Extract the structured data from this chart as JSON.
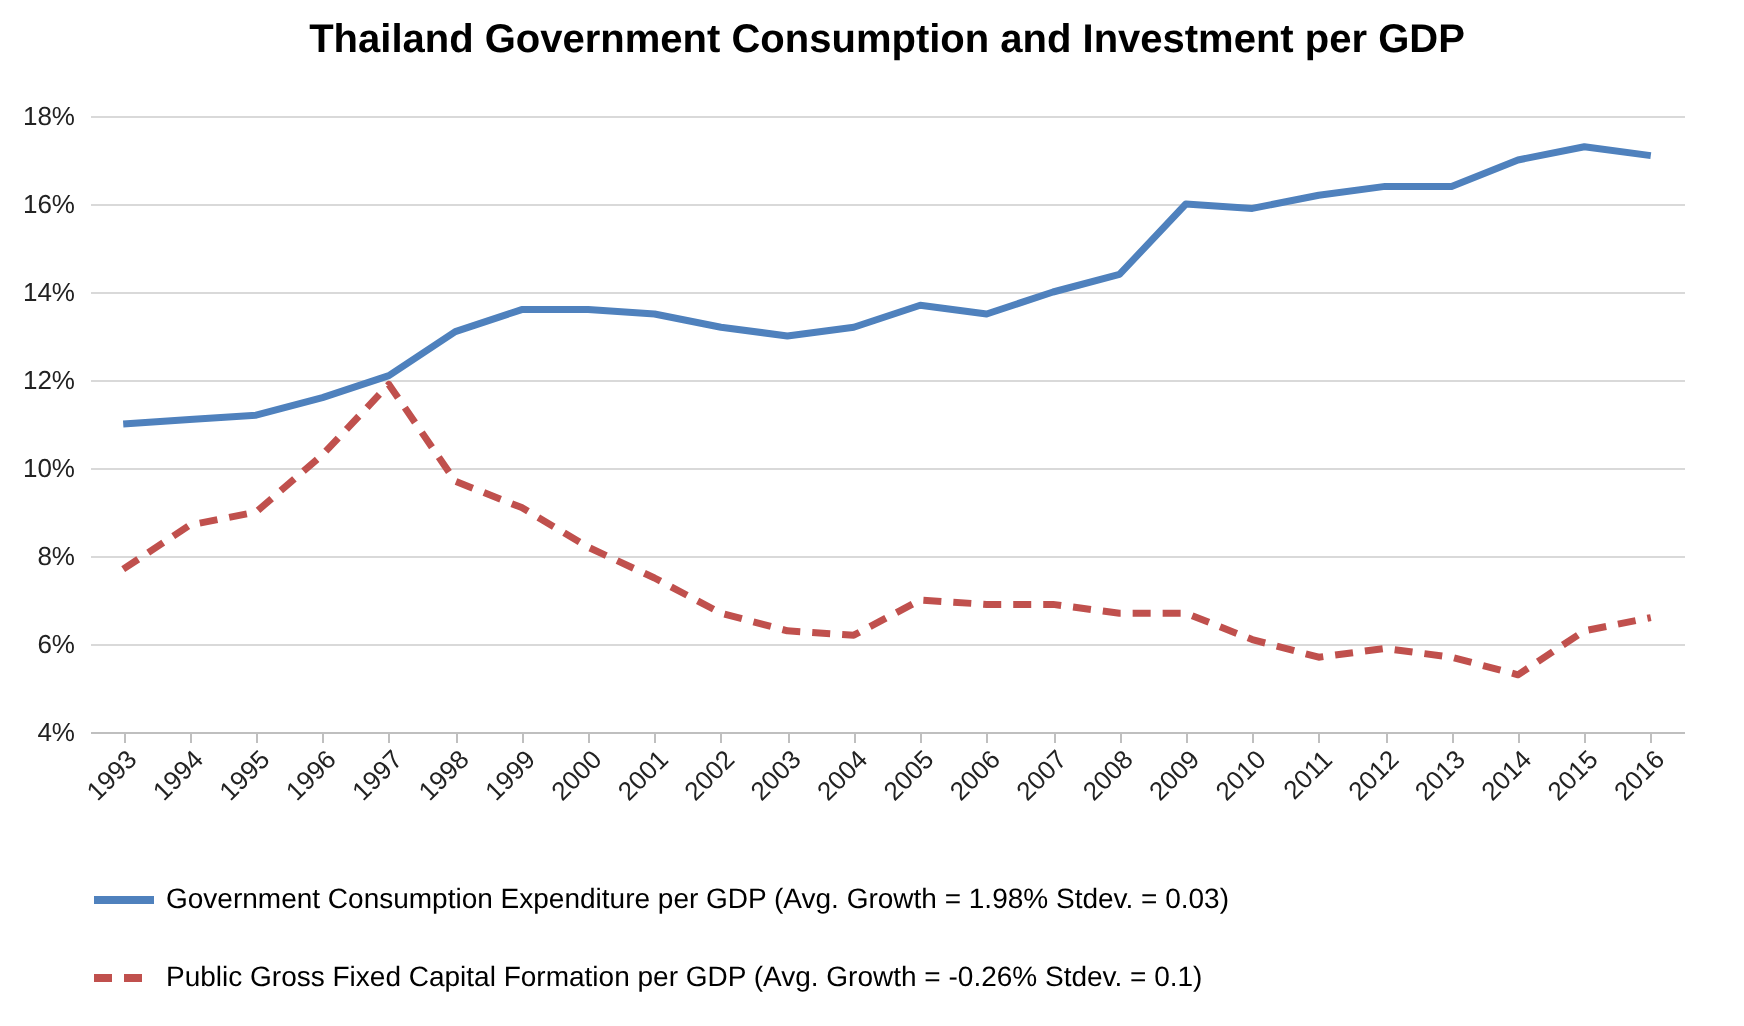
{
  "chart_data": {
    "type": "line",
    "title": "Thailand Government Consumption and Investment per GDP",
    "categories": [
      "1993",
      "1994",
      "1995",
      "1996",
      "1997",
      "1998",
      "1999",
      "2000",
      "2001",
      "2002",
      "2003",
      "2004",
      "2005",
      "2006",
      "2007",
      "2008",
      "2009",
      "2010",
      "2011",
      "2012",
      "2013",
      "2014",
      "2015",
      "2016"
    ],
    "series": [
      {
        "name": "Government Consumption Expenditure per GDP (Avg. Growth = 1.98% Stdev. = 0.03)",
        "color": "#4f81bd",
        "line_style": "solid",
        "values": [
          11.0,
          11.1,
          11.2,
          11.6,
          12.1,
          13.1,
          13.6,
          13.6,
          13.5,
          13.2,
          13.0,
          13.2,
          13.7,
          13.5,
          14.0,
          14.4,
          16.0,
          15.9,
          16.2,
          16.4,
          16.4,
          17.0,
          17.3,
          17.1
        ]
      },
      {
        "name": "Public Gross Fixed Capital Formation per GDP (Avg. Growth = -0.26% Stdev. = 0.1)",
        "color": "#c0504d",
        "line_style": "dashed",
        "values": [
          7.7,
          8.7,
          9.0,
          10.3,
          11.9,
          9.7,
          9.1,
          8.2,
          7.5,
          6.7,
          6.3,
          6.2,
          7.0,
          6.9,
          6.9,
          6.7,
          6.7,
          6.1,
          5.7,
          5.9,
          5.7,
          5.3,
          6.3,
          6.6
        ]
      }
    ],
    "ylim": [
      4,
      18
    ],
    "yticks": [
      {
        "value": 4,
        "label": "4%"
      },
      {
        "value": 6,
        "label": "6%"
      },
      {
        "value": 8,
        "label": "8%"
      },
      {
        "value": 10,
        "label": "10%"
      },
      {
        "value": 12,
        "label": "12%"
      },
      {
        "value": 14,
        "label": "14%"
      },
      {
        "value": 16,
        "label": "16%"
      },
      {
        "value": 18,
        "label": "18%"
      }
    ],
    "grid": "y",
    "legend": "bottom",
    "marker": "none"
  }
}
